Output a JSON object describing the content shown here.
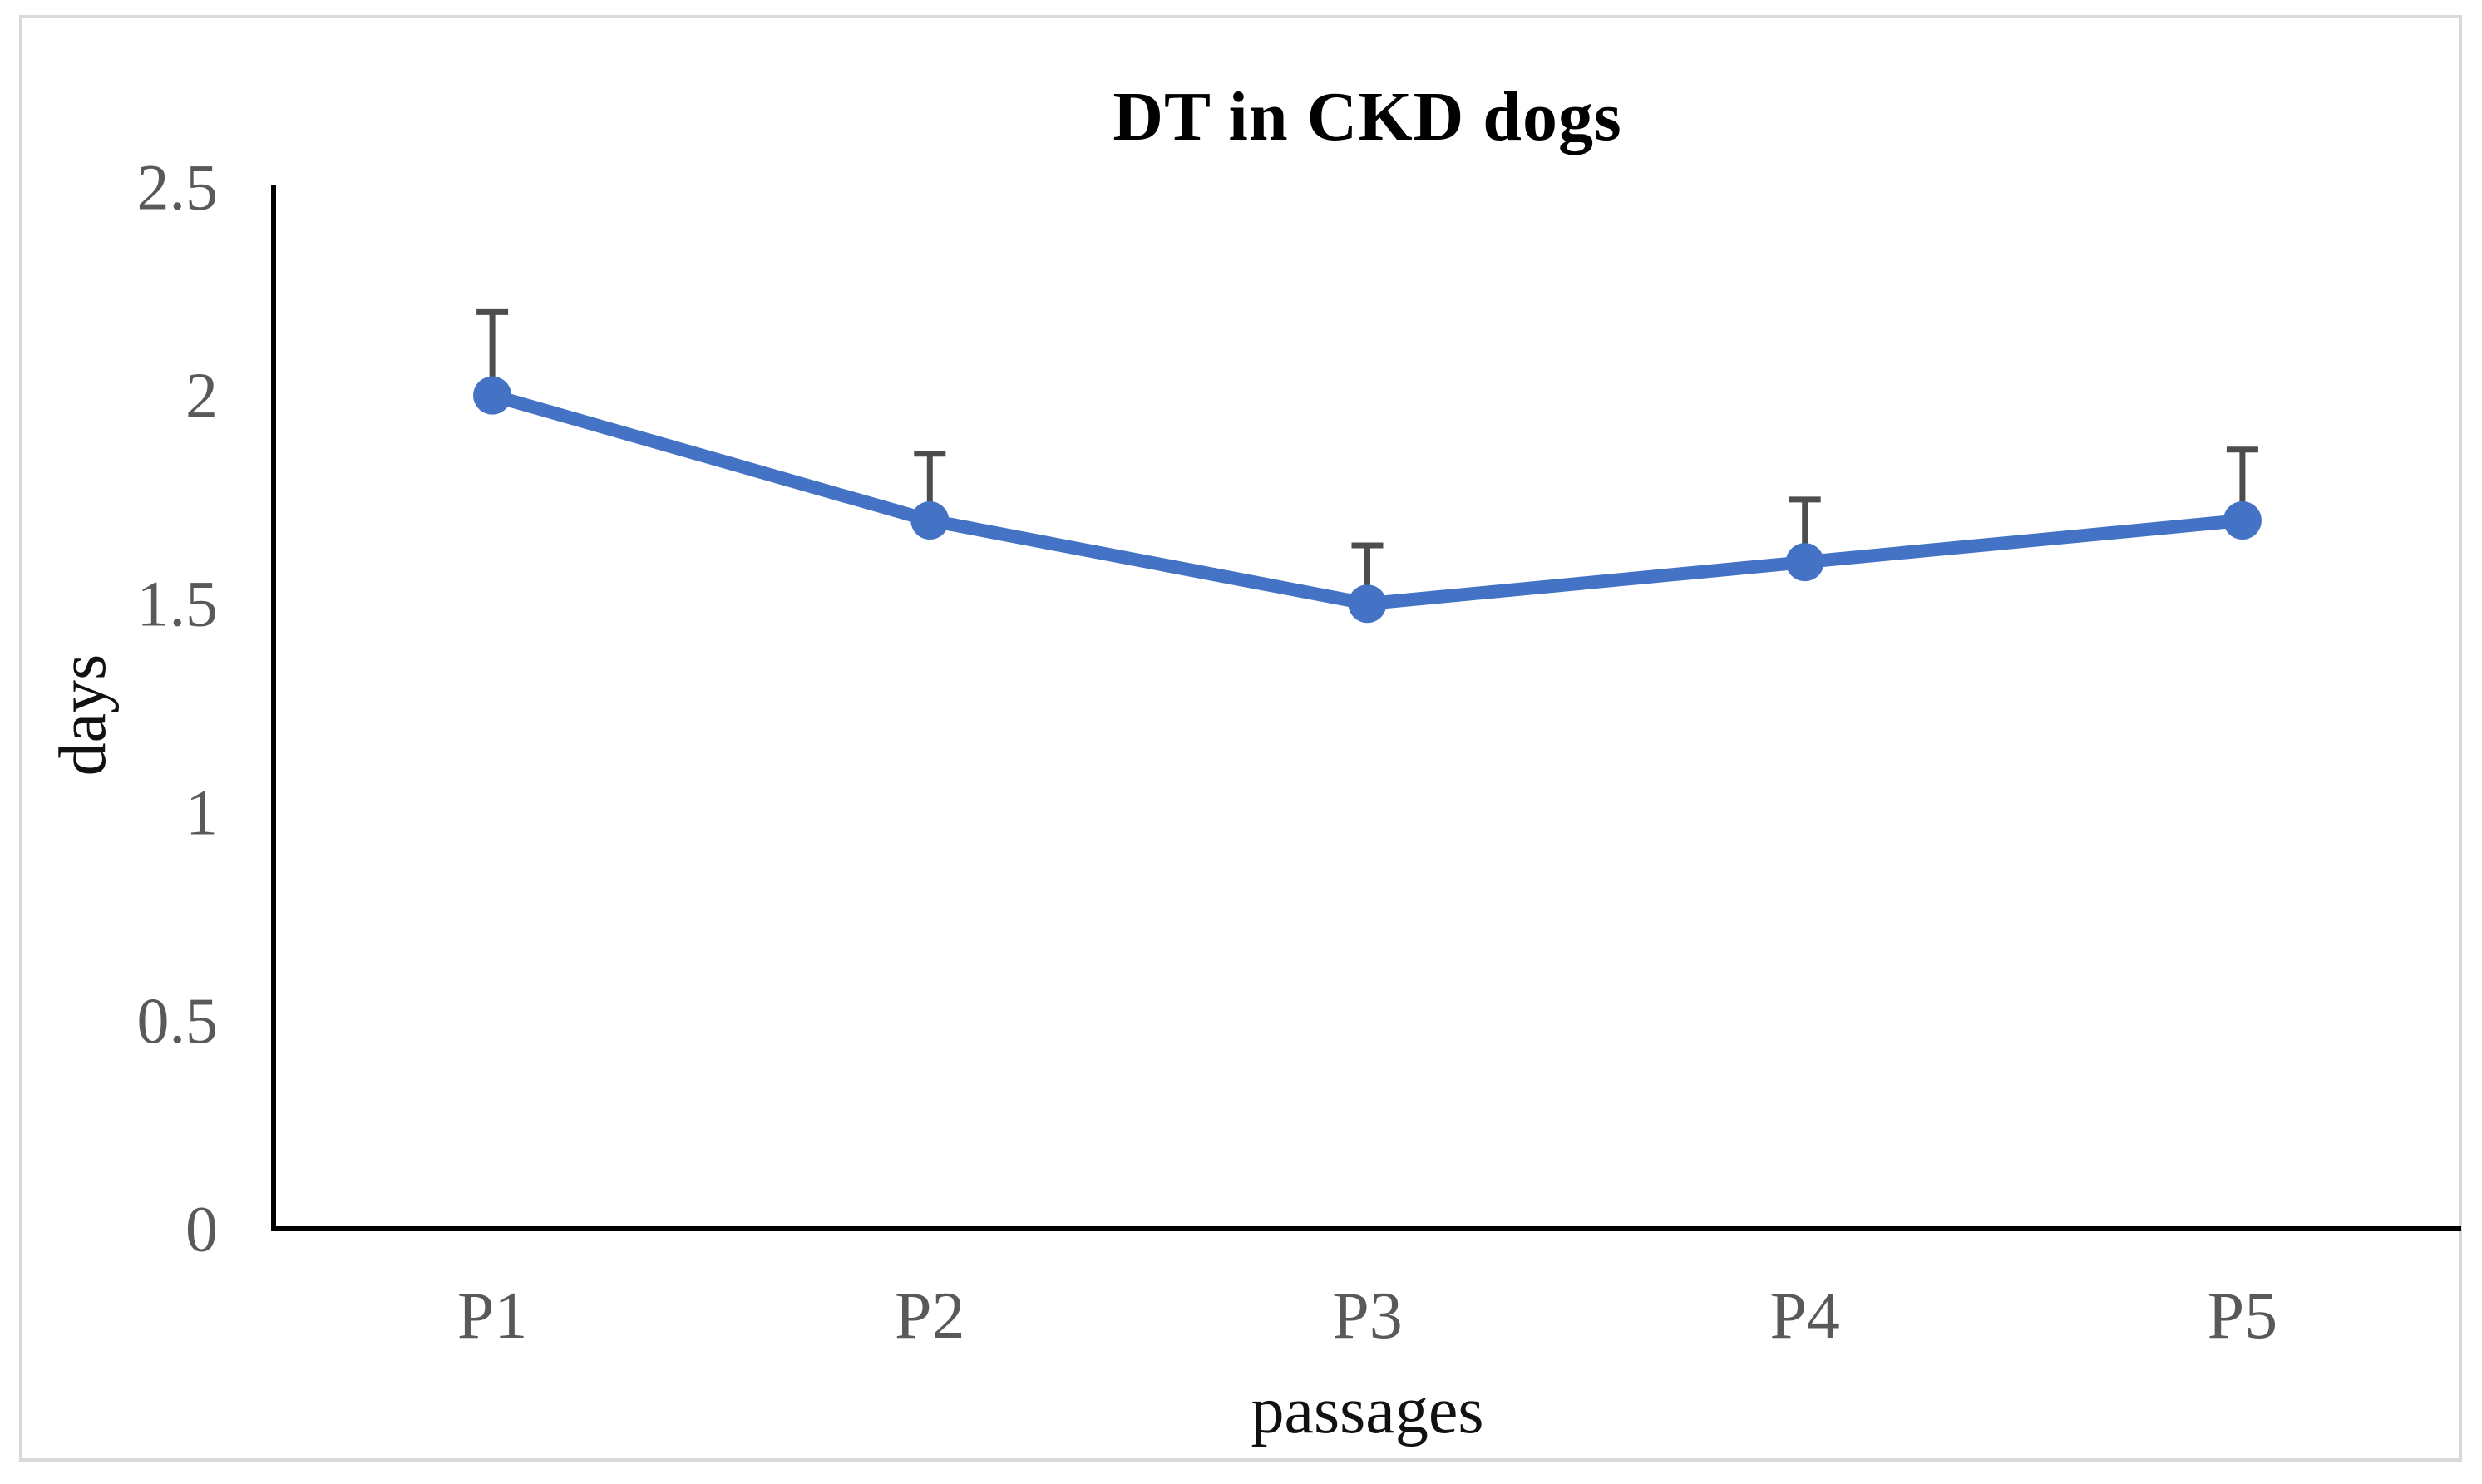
{
  "figure": {
    "border_color": "#d9d9d9",
    "background_color": "#ffffff"
  },
  "chart_data": {
    "type": "line",
    "title": "DT in CKD dogs",
    "xlabel": "passages",
    "ylabel": "days",
    "categories": [
      "P1",
      "P2",
      "P3",
      "P4",
      "P5"
    ],
    "series": [
      {
        "name": "DT",
        "values": [
          2.0,
          1.7,
          1.5,
          1.6,
          1.7
        ],
        "error_plus": [
          0.2,
          0.16,
          0.14,
          0.15,
          0.17
        ],
        "color": "#4472C4",
        "marker": "circle"
      }
    ],
    "ylim": [
      0,
      2.5
    ],
    "ytick_step": 0.5,
    "ytick_labels": [
      "0",
      "0.5",
      "1",
      "1.5",
      "2",
      "2.5"
    ],
    "grid": false,
    "legend": "none",
    "error_bar_color": "#4d4d4d",
    "axis_color": "#000000",
    "tick_label_color": "#595959"
  }
}
